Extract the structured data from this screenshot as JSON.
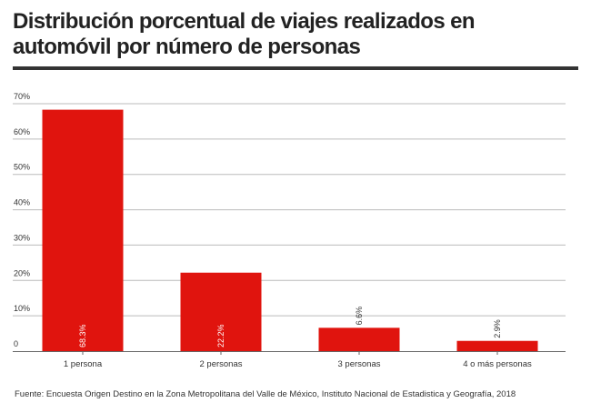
{
  "title": "Distribución porcentual de viajes realizados en automóvil por número de personas",
  "source": "Fuente:  Encuesta Origen Destino en la Zona Metropolitana del Valle de México, Instituto Nacional de Estadistica y Geografía, 2018",
  "colors": {
    "bar": "#e0140e",
    "grid": "#bbbbbb",
    "axis": "#666666",
    "rule": "#333333"
  },
  "chart_data": {
    "type": "bar",
    "categories": [
      "1 persona",
      "2 personas",
      "3 personas",
      "4 o más personas"
    ],
    "values": [
      68.3,
      22.2,
      6.6,
      2.9
    ],
    "data_labels": [
      "68.3%",
      "22.2%",
      "6.6%",
      "2.9%"
    ],
    "ylim": [
      0,
      70
    ],
    "yticks": [
      0,
      10,
      20,
      30,
      40,
      50,
      60,
      70
    ],
    "ytick_labels": [
      "0",
      "10%",
      "20%",
      "30%",
      "40%",
      "50%",
      "60%",
      "70%"
    ],
    "grid": true,
    "legend": "none"
  }
}
